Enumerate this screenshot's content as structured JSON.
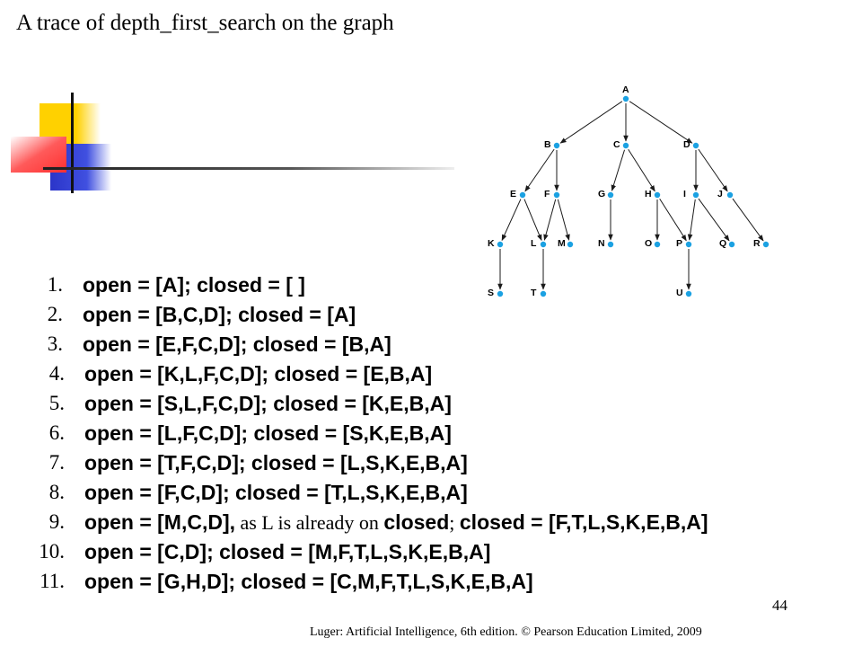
{
  "title": "A trace of depth_first_search on the graph",
  "colors": {
    "node": "#1ba1e2",
    "text": "#000000",
    "edge": "#1a1a1a"
  },
  "graph": {
    "nodes": [
      "A",
      "B",
      "C",
      "D",
      "E",
      "F",
      "G",
      "H",
      "I",
      "J",
      "K",
      "L",
      "M",
      "N",
      "O",
      "P",
      "Q",
      "R",
      "S",
      "T",
      "U"
    ],
    "edges": [
      [
        "A",
        "B"
      ],
      [
        "A",
        "C"
      ],
      [
        "A",
        "D"
      ],
      [
        "B",
        "E"
      ],
      [
        "B",
        "F"
      ],
      [
        "C",
        "G"
      ],
      [
        "C",
        "H"
      ],
      [
        "D",
        "I"
      ],
      [
        "D",
        "J"
      ],
      [
        "E",
        "K"
      ],
      [
        "E",
        "L"
      ],
      [
        "F",
        "L"
      ],
      [
        "F",
        "M"
      ],
      [
        "G",
        "N"
      ],
      [
        "H",
        "O"
      ],
      [
        "H",
        "P"
      ],
      [
        "I",
        "P"
      ],
      [
        "I",
        "Q"
      ],
      [
        "J",
        "R"
      ],
      [
        "K",
        "S"
      ],
      [
        "L",
        "T"
      ],
      [
        "P",
        "U"
      ]
    ]
  },
  "steps": [
    {
      "num": "1.",
      "text": "open = [A]; closed = [ ]"
    },
    {
      "num": "2.",
      "text": "open = [B,C,D]; closed = [A]"
    },
    {
      "num": "3.",
      "text": "open = [E,F,C,D]; closed = [B,A]"
    },
    {
      "num": "4.",
      "text": "open = [K,L,F,C,D]; closed = [E,B,A]"
    },
    {
      "num": "5.",
      "text": "open = [S,L,F,C,D]; closed = [K,E,B,A]"
    },
    {
      "num": "6.",
      "text": "open = [L,F,C,D]; closed = [S,K,E,B,A]"
    },
    {
      "num": "7.",
      "text": "open = [T,F,C,D]; closed = [L,S,K,E,B,A]"
    },
    {
      "num": "8.",
      "text": "open = [F,C,D]; closed = [T,L,S,K,E,B,A]"
    },
    {
      "num": "9.",
      "text_a": "open = [M,C,D],",
      "note": " as L is already on ",
      "text_b": "closed",
      "note2": "; ",
      "text_c": "closed = [F,T,L,S,K,E,B,A]"
    },
    {
      "num": "10.",
      "text": "open = [C,D]; closed = [M,F,T,L,S,K,E,B,A]"
    },
    {
      "num": "11.",
      "text": "open = [G,H,D]; closed = [C,M,F,T,L,S,K,E,B,A]"
    }
  ],
  "page_number": "44",
  "footer": "Luger:  Artificial  Intelligence,  6th edition.  © Pearson Education  Limited,  2009"
}
